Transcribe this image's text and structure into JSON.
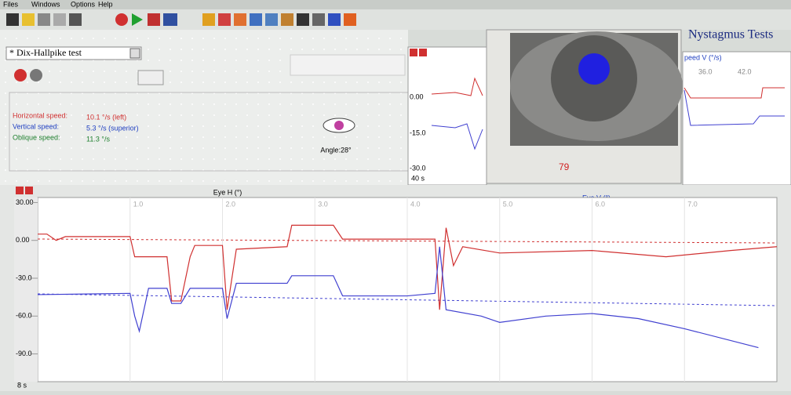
{
  "menu": [
    "Files",
    "Windows",
    "Options",
    "Help"
  ],
  "app_title": "Nystagmus Tests",
  "test_select": "* Dix-Hallpike test",
  "info": [
    {
      "label": "Horizontal speed:",
      "value": "10.1 °/s (left)"
    },
    {
      "label": "Vertical speed:",
      "value": "5.3 °/s (superior)"
    },
    {
      "label": "Oblique speed:",
      "value": "11.3 °/s"
    }
  ],
  "angle": "Angle:28°",
  "small_plot": {
    "yticks": [
      "0.00",
      "-15.0",
      "-30.0"
    ],
    "window": "40 s"
  },
  "video": {
    "value": "79"
  },
  "right_plot": {
    "title": "peed V (°/s)",
    "xticks": [
      "36.0",
      "42.0"
    ]
  },
  "chart_data": {
    "type": "line",
    "titles": [
      "Eye H (°)",
      "Eye V (°)"
    ],
    "window": "8 s",
    "xlim": [
      0,
      8
    ],
    "ylim": [
      -112,
      34
    ],
    "xticks": [
      {
        "value": 1,
        "label": "1.0"
      },
      {
        "value": 2,
        "label": "2.0"
      },
      {
        "value": 3,
        "label": "3.0"
      },
      {
        "value": 4,
        "label": "4.0"
      },
      {
        "value": 5,
        "label": "5.0"
      },
      {
        "value": 6,
        "label": "6.0"
      },
      {
        "value": 7,
        "label": "7.0"
      }
    ],
    "yticks": [
      {
        "value": 30,
        "label": "30.00"
      },
      {
        "value": 0,
        "label": "0.00"
      },
      {
        "value": -30,
        "label": "-30.0"
      },
      {
        "value": -60,
        "label": "-60.0"
      },
      {
        "value": -90,
        "label": "-90.0"
      }
    ],
    "series": [
      {
        "color": "#d03030",
        "x": [
          0,
          0.1,
          0.2,
          0.3,
          1.0,
          1.05,
          1.4,
          1.45,
          1.55,
          1.65,
          1.7,
          2.0,
          2.05,
          2.15,
          2.7,
          2.75,
          3.2,
          3.3,
          4.3,
          4.35,
          4.42,
          4.5,
          4.6,
          5.0,
          6.0,
          6.8,
          7.5,
          8.0
        ],
        "values": [
          5,
          5,
          0,
          3,
          3,
          -13,
          -13,
          -48,
          -48,
          -13,
          -4,
          -4,
          -55,
          -7,
          -5,
          12,
          12,
          1,
          1,
          -55,
          10,
          -20,
          -5,
          -10,
          -8,
          -13,
          -8,
          -5
        ]
      },
      {
        "color": "#4040d0",
        "x": [
          0,
          1.0,
          1.05,
          1.1,
          1.2,
          1.4,
          1.45,
          1.55,
          1.65,
          2.0,
          2.05,
          2.15,
          2.7,
          2.75,
          3.2,
          3.3,
          4.0,
          4.3,
          4.35,
          4.42,
          4.8,
          5.0,
          5.5,
          6.0,
          6.5,
          7.0,
          7.8
        ],
        "values": [
          -43,
          -42,
          -60,
          -72,
          -38,
          -38,
          -50,
          -50,
          -38,
          -38,
          -62,
          -34,
          -34,
          -28,
          -28,
          -44,
          -44,
          -42,
          -5,
          -55,
          -60,
          -65,
          -60,
          -58,
          -62,
          -70,
          -85
        ]
      }
    ]
  }
}
